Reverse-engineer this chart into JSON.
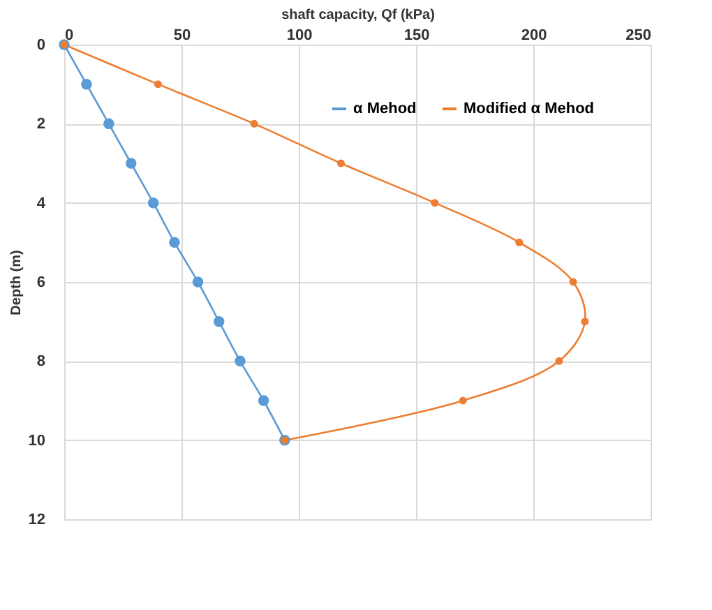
{
  "chart_data": {
    "type": "line",
    "xlabel": "shaft capacity, Qf (kPa)",
    "ylabel": "Depth (m)",
    "xlim": [
      0,
      250
    ],
    "xticks": [
      0,
      50,
      100,
      150,
      200,
      250
    ],
    "ylim": [
      12,
      0
    ],
    "yticks": [
      0,
      2,
      4,
      6,
      8,
      10,
      12
    ],
    "grid": true,
    "legend": "top right",
    "marker": "circle",
    "line_style": "solid",
    "series": [
      {
        "name": "α Mehod",
        "color": "#5b9bd5",
        "x": [
          0,
          9.5,
          19,
          28.5,
          38,
          47,
          57,
          66,
          75,
          85,
          94
        ],
        "values": [
          0,
          1,
          2,
          3,
          4,
          5,
          6,
          7,
          8,
          9,
          10
        ]
      },
      {
        "name": "Modified α Mehod",
        "color": "#ed7d31",
        "x": [
          0,
          40,
          81,
          118,
          158,
          194,
          217,
          222,
          211,
          170,
          94
        ],
        "values": [
          0,
          1,
          2,
          3,
          4,
          5,
          6,
          7,
          8,
          9,
          10
        ]
      }
    ]
  }
}
